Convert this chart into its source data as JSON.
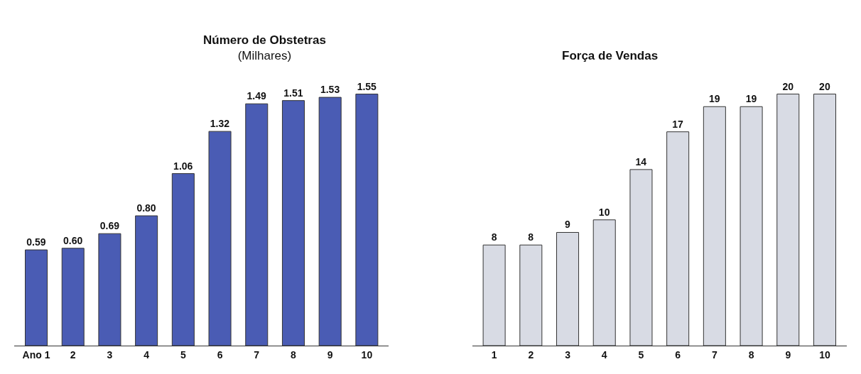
{
  "chart_data": [
    {
      "type": "bar",
      "title": "Número de Obstetras",
      "subtitle": "(Milhares)",
      "categories": [
        "Ano 1",
        "2",
        "3",
        "4",
        "5",
        "6",
        "7",
        "8",
        "9",
        "10"
      ],
      "values": [
        0.59,
        0.6,
        0.69,
        0.8,
        1.06,
        1.32,
        1.49,
        1.51,
        1.53,
        1.55
      ],
      "color": "#4a5cb4",
      "data_labels": true,
      "value_labels": [
        "0.59",
        "0.60",
        "0.69",
        "0.80",
        "1.06",
        "1.32",
        "1.49",
        "1.51",
        "1.53",
        "1.55"
      ]
    },
    {
      "type": "bar",
      "title": "Força de Vendas",
      "categories": [
        "1",
        "2",
        "3",
        "4",
        "5",
        "6",
        "7",
        "8",
        "9",
        "10"
      ],
      "values": [
        8,
        8,
        9,
        10,
        14,
        17,
        19,
        19,
        20,
        20
      ],
      "color": "#d8dbe4",
      "data_labels": true
    }
  ]
}
